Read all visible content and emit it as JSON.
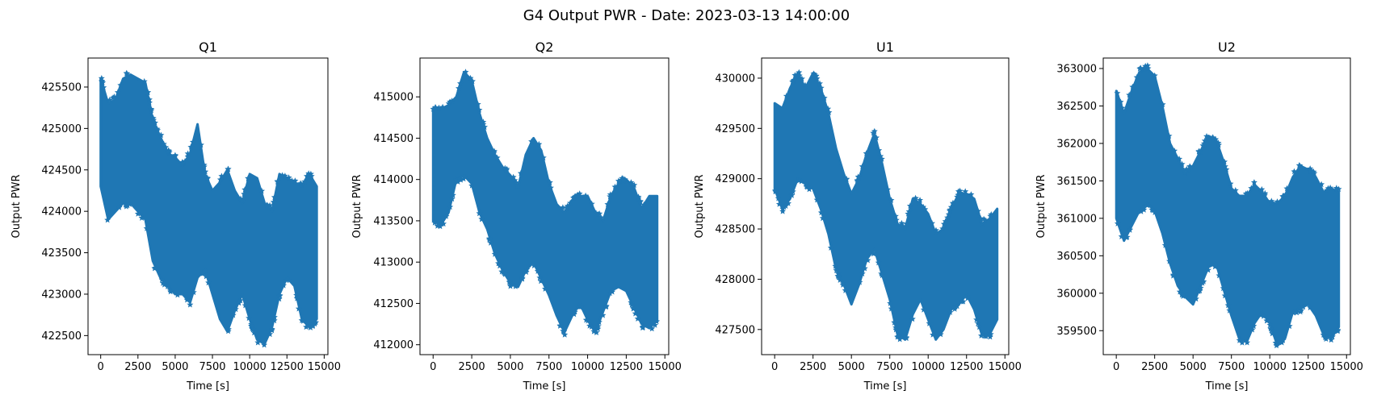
{
  "figure": {
    "suptitle": "G4 Output PWR - Date: 2023-03-13 14:00:00",
    "marker_color": "#1f77b4",
    "marker": "star"
  },
  "chart_data": [
    {
      "type": "scatter",
      "title": "Q1",
      "xlabel": "Time [s]",
      "ylabel": "Output PWR",
      "xlim": [
        -850,
        15250
      ],
      "ylim": [
        422270,
        425850
      ],
      "xticks": [
        0,
        2500,
        5000,
        7500,
        10000,
        12500,
        15000
      ],
      "yticks": [
        422500,
        423000,
        423500,
        424000,
        424500,
        425000,
        425500
      ],
      "grid": false,
      "x": [
        0,
        500,
        1000,
        1500,
        2000,
        2500,
        3000,
        3500,
        4000,
        4500,
        5000,
        5500,
        6000,
        6500,
        7000,
        7500,
        8000,
        8500,
        9000,
        9500,
        10000,
        10500,
        11000,
        11500,
        12000,
        12500,
        13000,
        13500,
        14000,
        14500
      ],
      "upper": [
        425600,
        425300,
        425350,
        425600,
        425650,
        425600,
        425550,
        425100,
        424900,
        424700,
        424650,
        424550,
        424700,
        425050,
        424450,
        424250,
        424350,
        424500,
        424250,
        424100,
        424450,
        424400,
        424100,
        424000,
        424450,
        424400,
        424350,
        424300,
        424450,
        424300
      ],
      "lower": [
        424300,
        423900,
        424000,
        424100,
        424100,
        424000,
        423900,
        423400,
        423200,
        423100,
        423000,
        423000,
        422900,
        423200,
        423300,
        423000,
        422700,
        422550,
        422800,
        423000,
        422700,
        422450,
        422400,
        422600,
        423000,
        423200,
        423100,
        422700,
        422600,
        422700
      ]
    },
    {
      "type": "scatter",
      "title": "Q2",
      "xlabel": "Time [s]",
      "ylabel": "Output PWR",
      "xlim": [
        -850,
        15250
      ],
      "ylim": [
        411880,
        415470
      ],
      "xticks": [
        0,
        2500,
        5000,
        7500,
        10000,
        12500,
        15000
      ],
      "yticks": [
        412000,
        412500,
        413000,
        413500,
        414000,
        414500,
        415000
      ],
      "grid": false,
      "x": [
        0,
        500,
        1000,
        1500,
        2000,
        2500,
        3000,
        3500,
        4000,
        4500,
        5000,
        5500,
        6000,
        6500,
        7000,
        7500,
        8000,
        8500,
        9000,
        9500,
        10000,
        10500,
        11000,
        11500,
        12000,
        12500,
        13000,
        13500,
        14000,
        14500
      ],
      "upper": [
        414850,
        414850,
        414900,
        415000,
        415300,
        415200,
        414800,
        414500,
        414300,
        414150,
        414050,
        413900,
        414300,
        414500,
        414350,
        413950,
        413700,
        413600,
        413750,
        413800,
        413800,
        413600,
        413500,
        413800,
        413950,
        414000,
        413900,
        413650,
        413800,
        413800
      ],
      "lower": [
        413500,
        413450,
        413600,
        414000,
        414050,
        413950,
        413600,
        413400,
        413100,
        412900,
        412750,
        412700,
        412900,
        413000,
        412800,
        412600,
        412350,
        412150,
        412350,
        412500,
        412300,
        412150,
        412400,
        412650,
        412700,
        412650,
        412450,
        412250,
        412200,
        412300
      ]
    },
    {
      "type": "scatter",
      "title": "U1",
      "xlabel": "Time [s]",
      "ylabel": "Output PWR",
      "xlim": [
        -850,
        15250
      ],
      "ylim": [
        427250,
        430200
      ],
      "xticks": [
        0,
        2500,
        5000,
        7500,
        10000,
        12500,
        15000
      ],
      "yticks": [
        427500,
        428000,
        428500,
        429000,
        429500,
        430000
      ],
      "grid": false,
      "x": [
        0,
        500,
        1000,
        1500,
        2000,
        2500,
        3000,
        3500,
        4000,
        4500,
        5000,
        5500,
        6000,
        6500,
        7000,
        7500,
        8000,
        8500,
        9000,
        9500,
        10000,
        10500,
        11000,
        11500,
        12000,
        12500,
        13000,
        13500,
        14000,
        14500
      ],
      "upper": [
        429750,
        429700,
        429900,
        430050,
        429900,
        430050,
        429900,
        429650,
        429300,
        429050,
        428850,
        429000,
        429250,
        429450,
        429150,
        428800,
        428550,
        428500,
        428800,
        428750,
        428650,
        428450,
        428500,
        428700,
        428850,
        428850,
        428800,
        428550,
        428600,
        428700
      ],
      "lower": [
        428900,
        428700,
        428800,
        429000,
        428950,
        428900,
        428700,
        428450,
        428100,
        427950,
        427750,
        427950,
        428200,
        428300,
        428050,
        427800,
        427450,
        427400,
        427650,
        427800,
        427600,
        427400,
        427500,
        427700,
        427750,
        427850,
        427700,
        427450,
        427450,
        427600
      ]
    },
    {
      "type": "scatter",
      "title": "U2",
      "xlabel": "Time [s]",
      "ylabel": "Output PWR",
      "xlim": [
        -850,
        15250
      ],
      "ylim": [
        359180,
        363140
      ],
      "xticks": [
        0,
        2500,
        5000,
        7500,
        10000,
        12500,
        15000
      ],
      "yticks": [
        359500,
        360000,
        360500,
        361000,
        361500,
        362000,
        362500,
        363000
      ],
      "grid": false,
      "x": [
        0,
        500,
        1000,
        1500,
        2000,
        2500,
        3000,
        3500,
        4000,
        4500,
        5000,
        5500,
        6000,
        6500,
        7000,
        7500,
        8000,
        8500,
        9000,
        9500,
        10000,
        10500,
        11000,
        11500,
        12000,
        12500,
        13000,
        13500,
        14000,
        14500
      ],
      "upper": [
        362700,
        362400,
        362700,
        362950,
        363000,
        362900,
        362500,
        362000,
        361800,
        361600,
        361700,
        361900,
        362100,
        362050,
        361750,
        361400,
        361300,
        361300,
        361450,
        361350,
        361200,
        361200,
        361300,
        361550,
        361700,
        361650,
        361550,
        361350,
        361400,
        361350
      ],
      "lower": [
        361000,
        360700,
        360900,
        361100,
        361200,
        361100,
        360800,
        360400,
        360100,
        359950,
        359850,
        360100,
        360350,
        360400,
        360050,
        359700,
        359400,
        359350,
        359600,
        359750,
        359600,
        359300,
        359400,
        359750,
        359800,
        359850,
        359700,
        359450,
        359400,
        359550
      ]
    }
  ]
}
